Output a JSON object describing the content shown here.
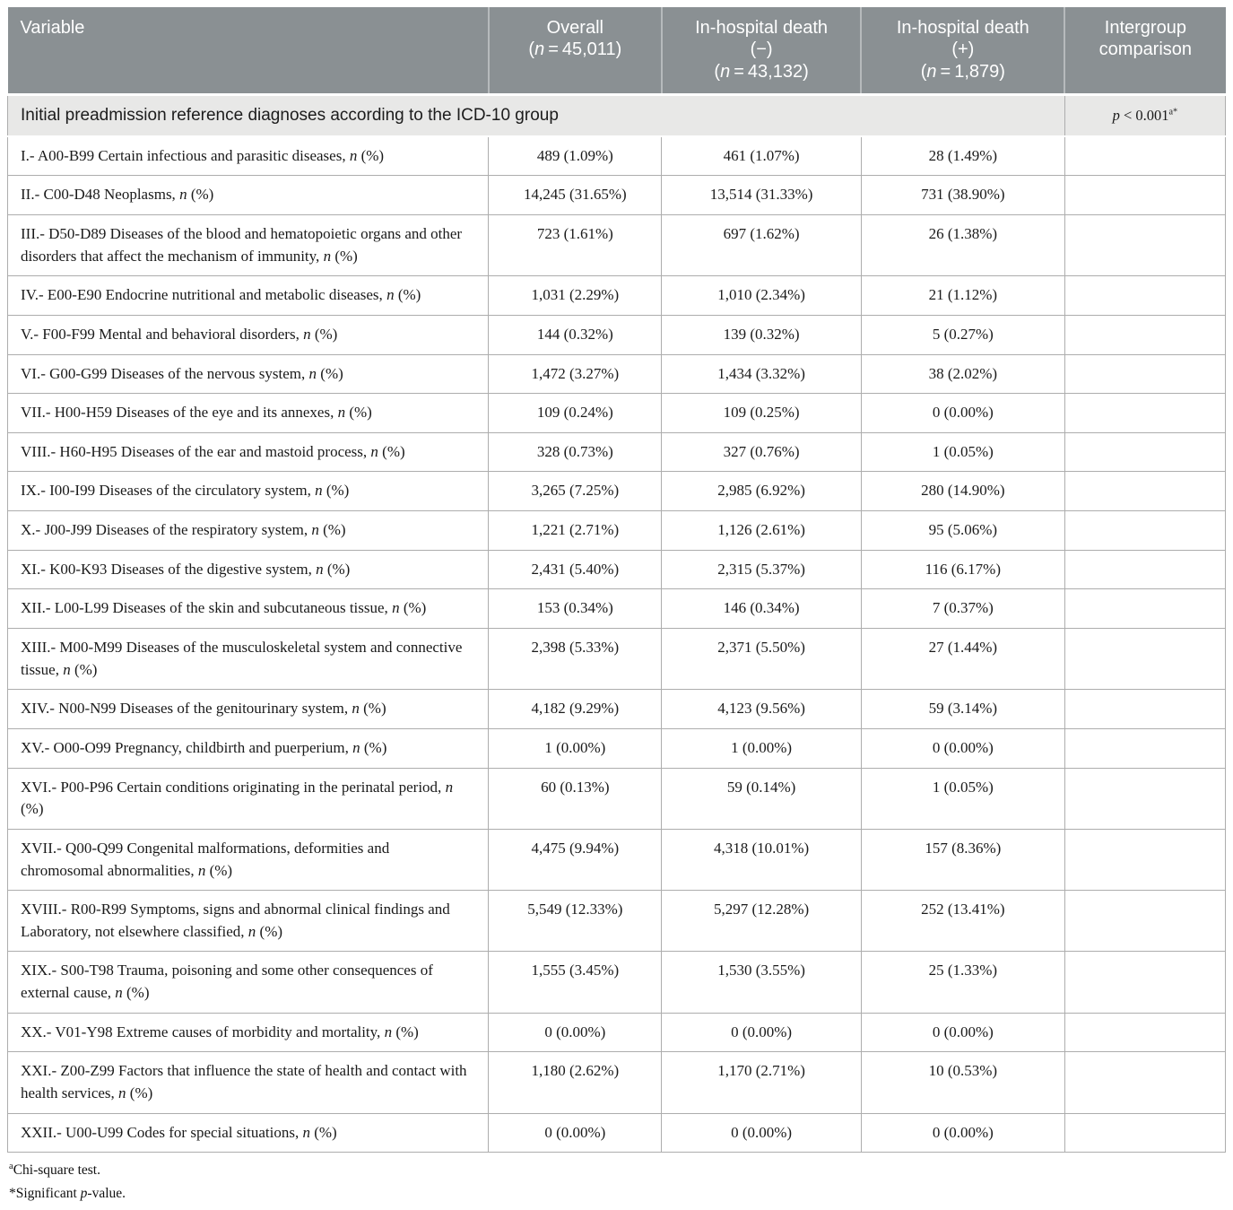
{
  "table": {
    "header": {
      "columns": [
        {
          "label": "Variable",
          "sub": ""
        },
        {
          "label": "Overall",
          "sub": "(n = 45,011)"
        },
        {
          "label": "In-hospital death (−)",
          "sub": "(n = 43,132)"
        },
        {
          "label": "In-hospital death (+)",
          "sub": "(n = 1,879)"
        },
        {
          "label": "Intergroup comparison",
          "sub": ""
        }
      ]
    },
    "section": {
      "title": "Initial preadmission reference diagnoses according to the ICD-10 group",
      "p_value": "p < 0.001",
      "p_sup": "a*"
    },
    "rows": [
      {
        "variable": "I.- A00-B99 Certain infectious and parasitic diseases, n (%)",
        "overall": "489 (1.09%)",
        "death_neg": "461 (1.07%)",
        "death_pos": "28 (1.49%)",
        "comparison": ""
      },
      {
        "variable": "II.- C00-D48 Neoplasms, n (%)",
        "overall": "14,245 (31.65%)",
        "death_neg": "13,514 (31.33%)",
        "death_pos": "731 (38.90%)",
        "comparison": ""
      },
      {
        "variable": "III.- D50-D89 Diseases of the blood and hematopoietic organs and other disorders that affect the mechanism of immunity, n (%)",
        "overall": "723 (1.61%)",
        "death_neg": "697 (1.62%)",
        "death_pos": "26 (1.38%)",
        "comparison": ""
      },
      {
        "variable": "IV.- E00-E90 Endocrine nutritional and metabolic diseases, n (%)",
        "overall": "1,031 (2.29%)",
        "death_neg": "1,010 (2.34%)",
        "death_pos": "21 (1.12%)",
        "comparison": ""
      },
      {
        "variable": "V.- F00-F99 Mental and behavioral disorders, n (%)",
        "overall": "144 (0.32%)",
        "death_neg": "139 (0.32%)",
        "death_pos": "5 (0.27%)",
        "comparison": ""
      },
      {
        "variable": "VI.- G00-G99 Diseases of the nervous system, n (%)",
        "overall": "1,472 (3.27%)",
        "death_neg": "1,434 (3.32%)",
        "death_pos": "38 (2.02%)",
        "comparison": ""
      },
      {
        "variable": "VII.- H00-H59 Diseases of the eye and its annexes, n (%)",
        "overall": "109 (0.24%)",
        "death_neg": "109 (0.25%)",
        "death_pos": "0 (0.00%)",
        "comparison": ""
      },
      {
        "variable": "VIII.- H60-H95 Diseases of the ear and mastoid process, n (%)",
        "overall": "328 (0.73%)",
        "death_neg": "327 (0.76%)",
        "death_pos": "1 (0.05%)",
        "comparison": ""
      },
      {
        "variable": "IX.- I00-I99 Diseases of the circulatory system, n (%)",
        "overall": "3,265 (7.25%)",
        "death_neg": "2,985 (6.92%)",
        "death_pos": "280 (14.90%)",
        "comparison": ""
      },
      {
        "variable": "X.- J00-J99 Diseases of the respiratory system, n (%)",
        "overall": "1,221 (2.71%)",
        "death_neg": "1,126 (2.61%)",
        "death_pos": "95 (5.06%)",
        "comparison": ""
      },
      {
        "variable": "XI.- K00-K93 Diseases of the digestive system, n (%)",
        "overall": "2,431 (5.40%)",
        "death_neg": "2,315 (5.37%)",
        "death_pos": "116 (6.17%)",
        "comparison": ""
      },
      {
        "variable": "XII.- L00-L99 Diseases of the skin and subcutaneous tissue, n (%)",
        "overall": "153 (0.34%)",
        "death_neg": "146 (0.34%)",
        "death_pos": "7 (0.37%)",
        "comparison": ""
      },
      {
        "variable": "XIII.- M00-M99 Diseases of the musculoskeletal system and connective tissue, n (%)",
        "overall": "2,398 (5.33%)",
        "death_neg": "2,371 (5.50%)",
        "death_pos": "27 (1.44%)",
        "comparison": ""
      },
      {
        "variable": "XIV.- N00-N99 Diseases of the genitourinary system, n (%)",
        "overall": "4,182 (9.29%)",
        "death_neg": "4,123 (9.56%)",
        "death_pos": "59 (3.14%)",
        "comparison": ""
      },
      {
        "variable": "XV.- O00-O99 Pregnancy, childbirth and puerperium, n (%)",
        "overall": "1 (0.00%)",
        "death_neg": "1 (0.00%)",
        "death_pos": "0 (0.00%)",
        "comparison": ""
      },
      {
        "variable": "XVI.- P00-P96 Certain conditions originating in the perinatal period, n (%)",
        "overall": "60 (0.13%)",
        "death_neg": "59 (0.14%)",
        "death_pos": "1 (0.05%)",
        "comparison": ""
      },
      {
        "variable": "XVII.- Q00-Q99 Congenital malformations, deformities and chromosomal abnormalities, n (%)",
        "overall": "4,475 (9.94%)",
        "death_neg": "4,318 (10.01%)",
        "death_pos": "157 (8.36%)",
        "comparison": ""
      },
      {
        "variable": "XVIII.- R00-R99 Symptoms, signs and abnormal clinical findings and Laboratory, not elsewhere classified, n (%)",
        "overall": "5,549 (12.33%)",
        "death_neg": "5,297 (12.28%)",
        "death_pos": "252 (13.41%)",
        "comparison": ""
      },
      {
        "variable": "XIX.- S00-T98 Trauma, poisoning and some other consequences of external cause, n (%)",
        "overall": "1,555 (3.45%)",
        "death_neg": "1,530 (3.55%)",
        "death_pos": "25 (1.33%)",
        "comparison": ""
      },
      {
        "variable": "XX.- V01-Y98 Extreme causes of morbidity and mortality, n (%)",
        "overall": "0 (0.00%)",
        "death_neg": "0 (0.00%)",
        "death_pos": "0 (0.00%)",
        "comparison": ""
      },
      {
        "variable": "XXI.- Z00-Z99 Factors that influence the state of health and contact with health services, n (%)",
        "overall": "1,180 (2.62%)",
        "death_neg": "1,170 (2.71%)",
        "death_pos": "10 (0.53%)",
        "comparison": ""
      },
      {
        "variable": "XXII.- U00-U99 Codes for special situations, n (%)",
        "overall": "0 (0.00%)",
        "death_neg": "0 (0.00%)",
        "death_pos": "0 (0.00%)",
        "comparison": ""
      }
    ]
  },
  "footnotes": [
    {
      "marker": "a",
      "superscript": true,
      "text": "Chi-square test."
    },
    {
      "marker": "*",
      "superscript": false,
      "text": "Significant p-value."
    }
  ],
  "colors": {
    "header_bg": "#8a9093",
    "header_text": "#ffffff",
    "section_bg": "#e8e8e7",
    "cell_border": "#adadad"
  }
}
